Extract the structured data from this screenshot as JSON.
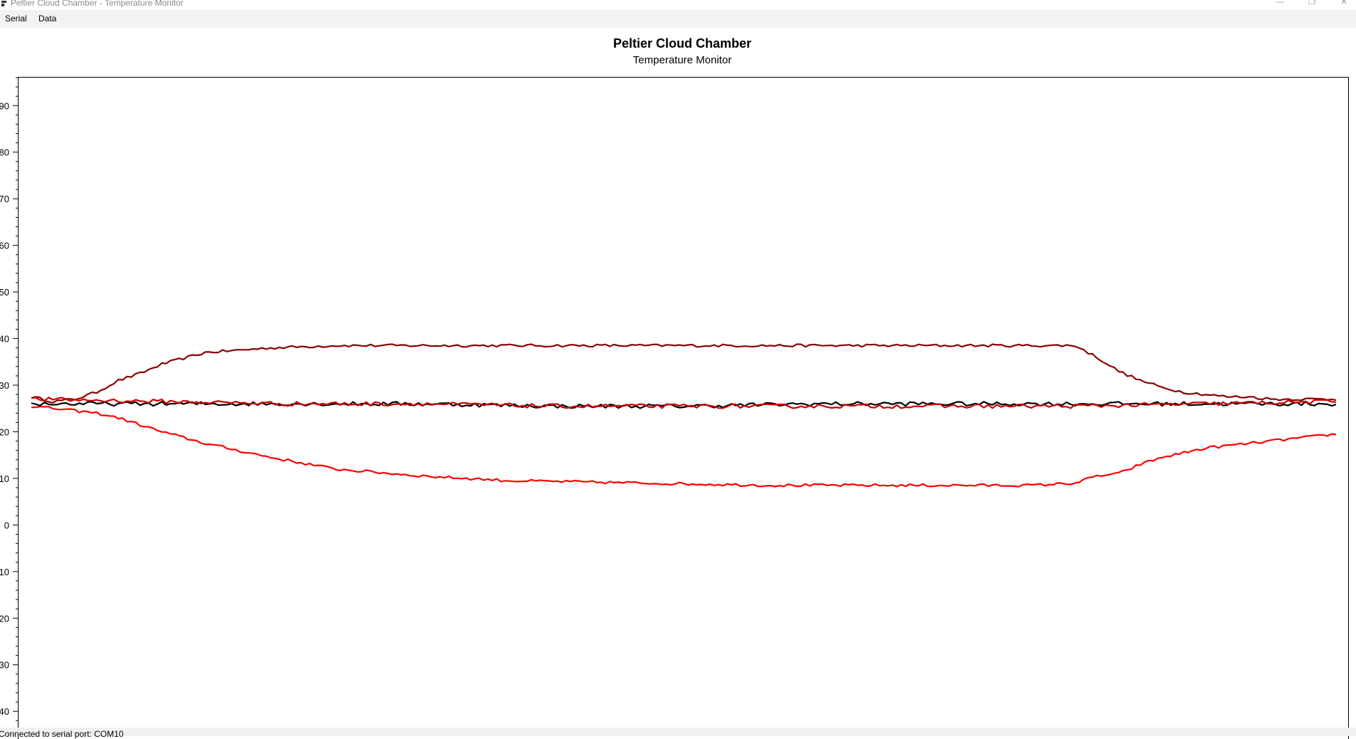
{
  "window": {
    "title": "Peltier Cloud Chamber - Temperature Monitor",
    "minimize_glyph": "—",
    "restore_glyph": "❐",
    "close_glyph": "✕"
  },
  "menu": {
    "items": [
      {
        "label": "Serial"
      },
      {
        "label": "Data"
      }
    ]
  },
  "status": {
    "text": "Connected to serial port: COM10"
  },
  "colors": {
    "dark_red": "#8b0000",
    "red": "#ff0000",
    "black": "#000000",
    "crimson": "#cc0000"
  },
  "chart_data": {
    "type": "line",
    "title": "Peltier Cloud Chamber",
    "subtitle": "Temperature Monitor",
    "xlabel": "",
    "ylabel": "",
    "ylim": [
      -47,
      96
    ],
    "yticks": [
      90,
      80,
      70,
      60,
      50,
      40,
      30,
      20,
      10,
      0,
      -10,
      -20,
      -30,
      -40
    ],
    "ytick_labels": [
      "90",
      "80",
      "70",
      "60",
      "50",
      "40",
      "30",
      "20",
      "10",
      "0",
      "10",
      "20",
      "30",
      "40"
    ],
    "xlim": [
      0,
      300
    ],
    "grid": false,
    "legend": "none",
    "series": [
      {
        "color": "#8b0000",
        "x": [
          0,
          5,
          10,
          15,
          20,
          25,
          30,
          40,
          55,
          70,
          90,
          110,
          140,
          170,
          200,
          230,
          240,
          245,
          250,
          255,
          260,
          265,
          270,
          275,
          280,
          285,
          290,
          295,
          300
        ],
        "values": [
          27.5,
          26.5,
          27,
          28.5,
          31,
          32.5,
          34.5,
          37,
          38,
          38.5,
          38.5,
          38.5,
          38.5,
          38.5,
          38.5,
          38.5,
          38.5,
          36,
          33,
          31,
          29.5,
          28.5,
          28,
          27.5,
          27.5,
          27,
          27,
          27,
          27
        ]
      },
      {
        "color": "#ff0000",
        "x": [
          0,
          5,
          10,
          15,
          20,
          25,
          30,
          40,
          55,
          70,
          90,
          110,
          140,
          170,
          200,
          230,
          240,
          245,
          250,
          255,
          260,
          265,
          270,
          275,
          280,
          285,
          290,
          295,
          300
        ],
        "values": [
          25.5,
          25,
          24.5,
          24,
          23,
          21.5,
          20,
          17.5,
          14.5,
          12,
          10.5,
          9.5,
          9,
          8.5,
          8.5,
          8.5,
          9,
          10.5,
          11,
          13,
          14.5,
          15.5,
          16.5,
          17,
          17.5,
          18,
          18.5,
          19,
          19.5
        ]
      },
      {
        "color": "#000000",
        "x": [
          0,
          30,
          60,
          90,
          120,
          150,
          180,
          210,
          240,
          270,
          300
        ],
        "values": [
          26,
          26,
          26,
          26,
          25.5,
          25.5,
          26,
          26,
          26,
          26,
          26
        ]
      },
      {
        "color": "#cc0000",
        "x": [
          0,
          30,
          60,
          90,
          120,
          150,
          180,
          210,
          240,
          270,
          300
        ],
        "values": [
          27,
          26.5,
          26,
          26,
          25.5,
          25.5,
          25.5,
          25.5,
          25.5,
          26,
          26.5
        ]
      }
    ]
  }
}
